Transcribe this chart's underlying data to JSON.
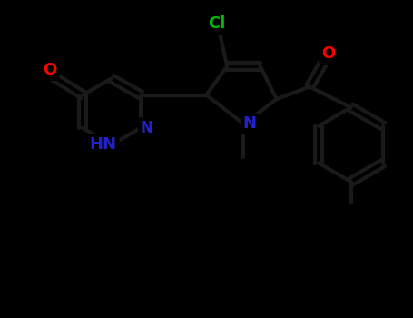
{
  "background_color": "#000000",
  "bond_color": "#1a1a1a",
  "atom_colors": {
    "O": "#ff0000",
    "N": "#2222cc",
    "Cl": "#00bb00",
    "C": "#ffffff",
    "H": "#ffffff"
  },
  "line_width": 3.0,
  "dbo": 0.09,
  "font_size_atom": 13,
  "xlim": [
    0,
    10
  ],
  "ylim": [
    0,
    7.7
  ],
  "figsize": [
    4.55,
    3.5
  ],
  "dpi": 100
}
